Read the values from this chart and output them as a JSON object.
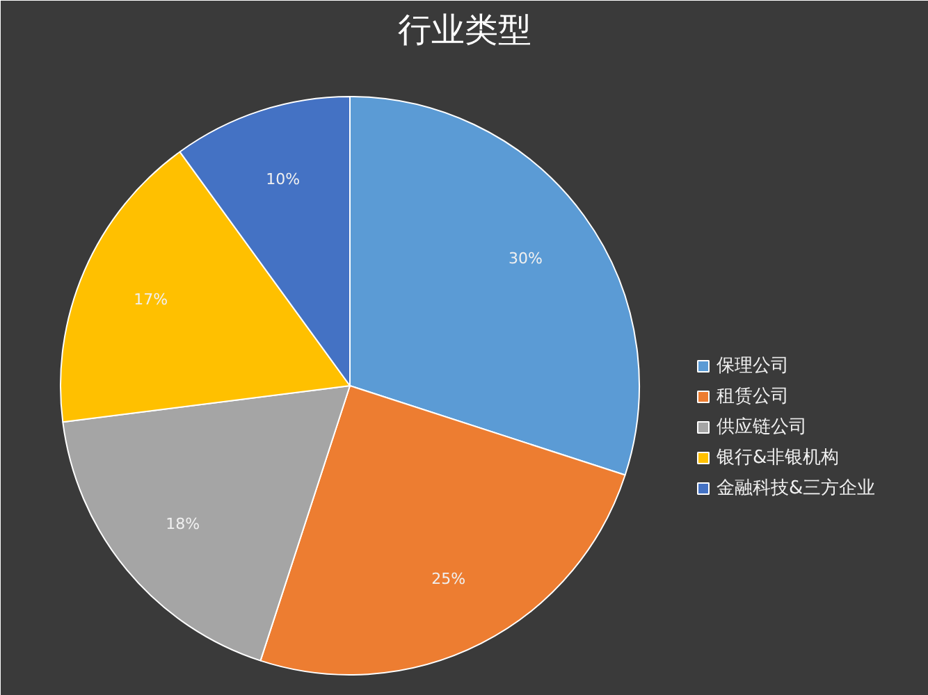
{
  "chart_data": {
    "type": "pie",
    "title": "行业类型",
    "categories": [
      "保理公司",
      "租赁公司",
      "供应链公司",
      "银行&非银机构",
      "金融科技&三方企业"
    ],
    "values": [
      30,
      25,
      18,
      17,
      10
    ],
    "colors": [
      "#5b9bd5",
      "#ed7d31",
      "#a5a5a5",
      "#ffc000",
      "#4472c4"
    ],
    "value_labels": [
      "30%",
      "25%",
      "18%",
      "17%",
      "10%"
    ],
    "legend": "right"
  }
}
